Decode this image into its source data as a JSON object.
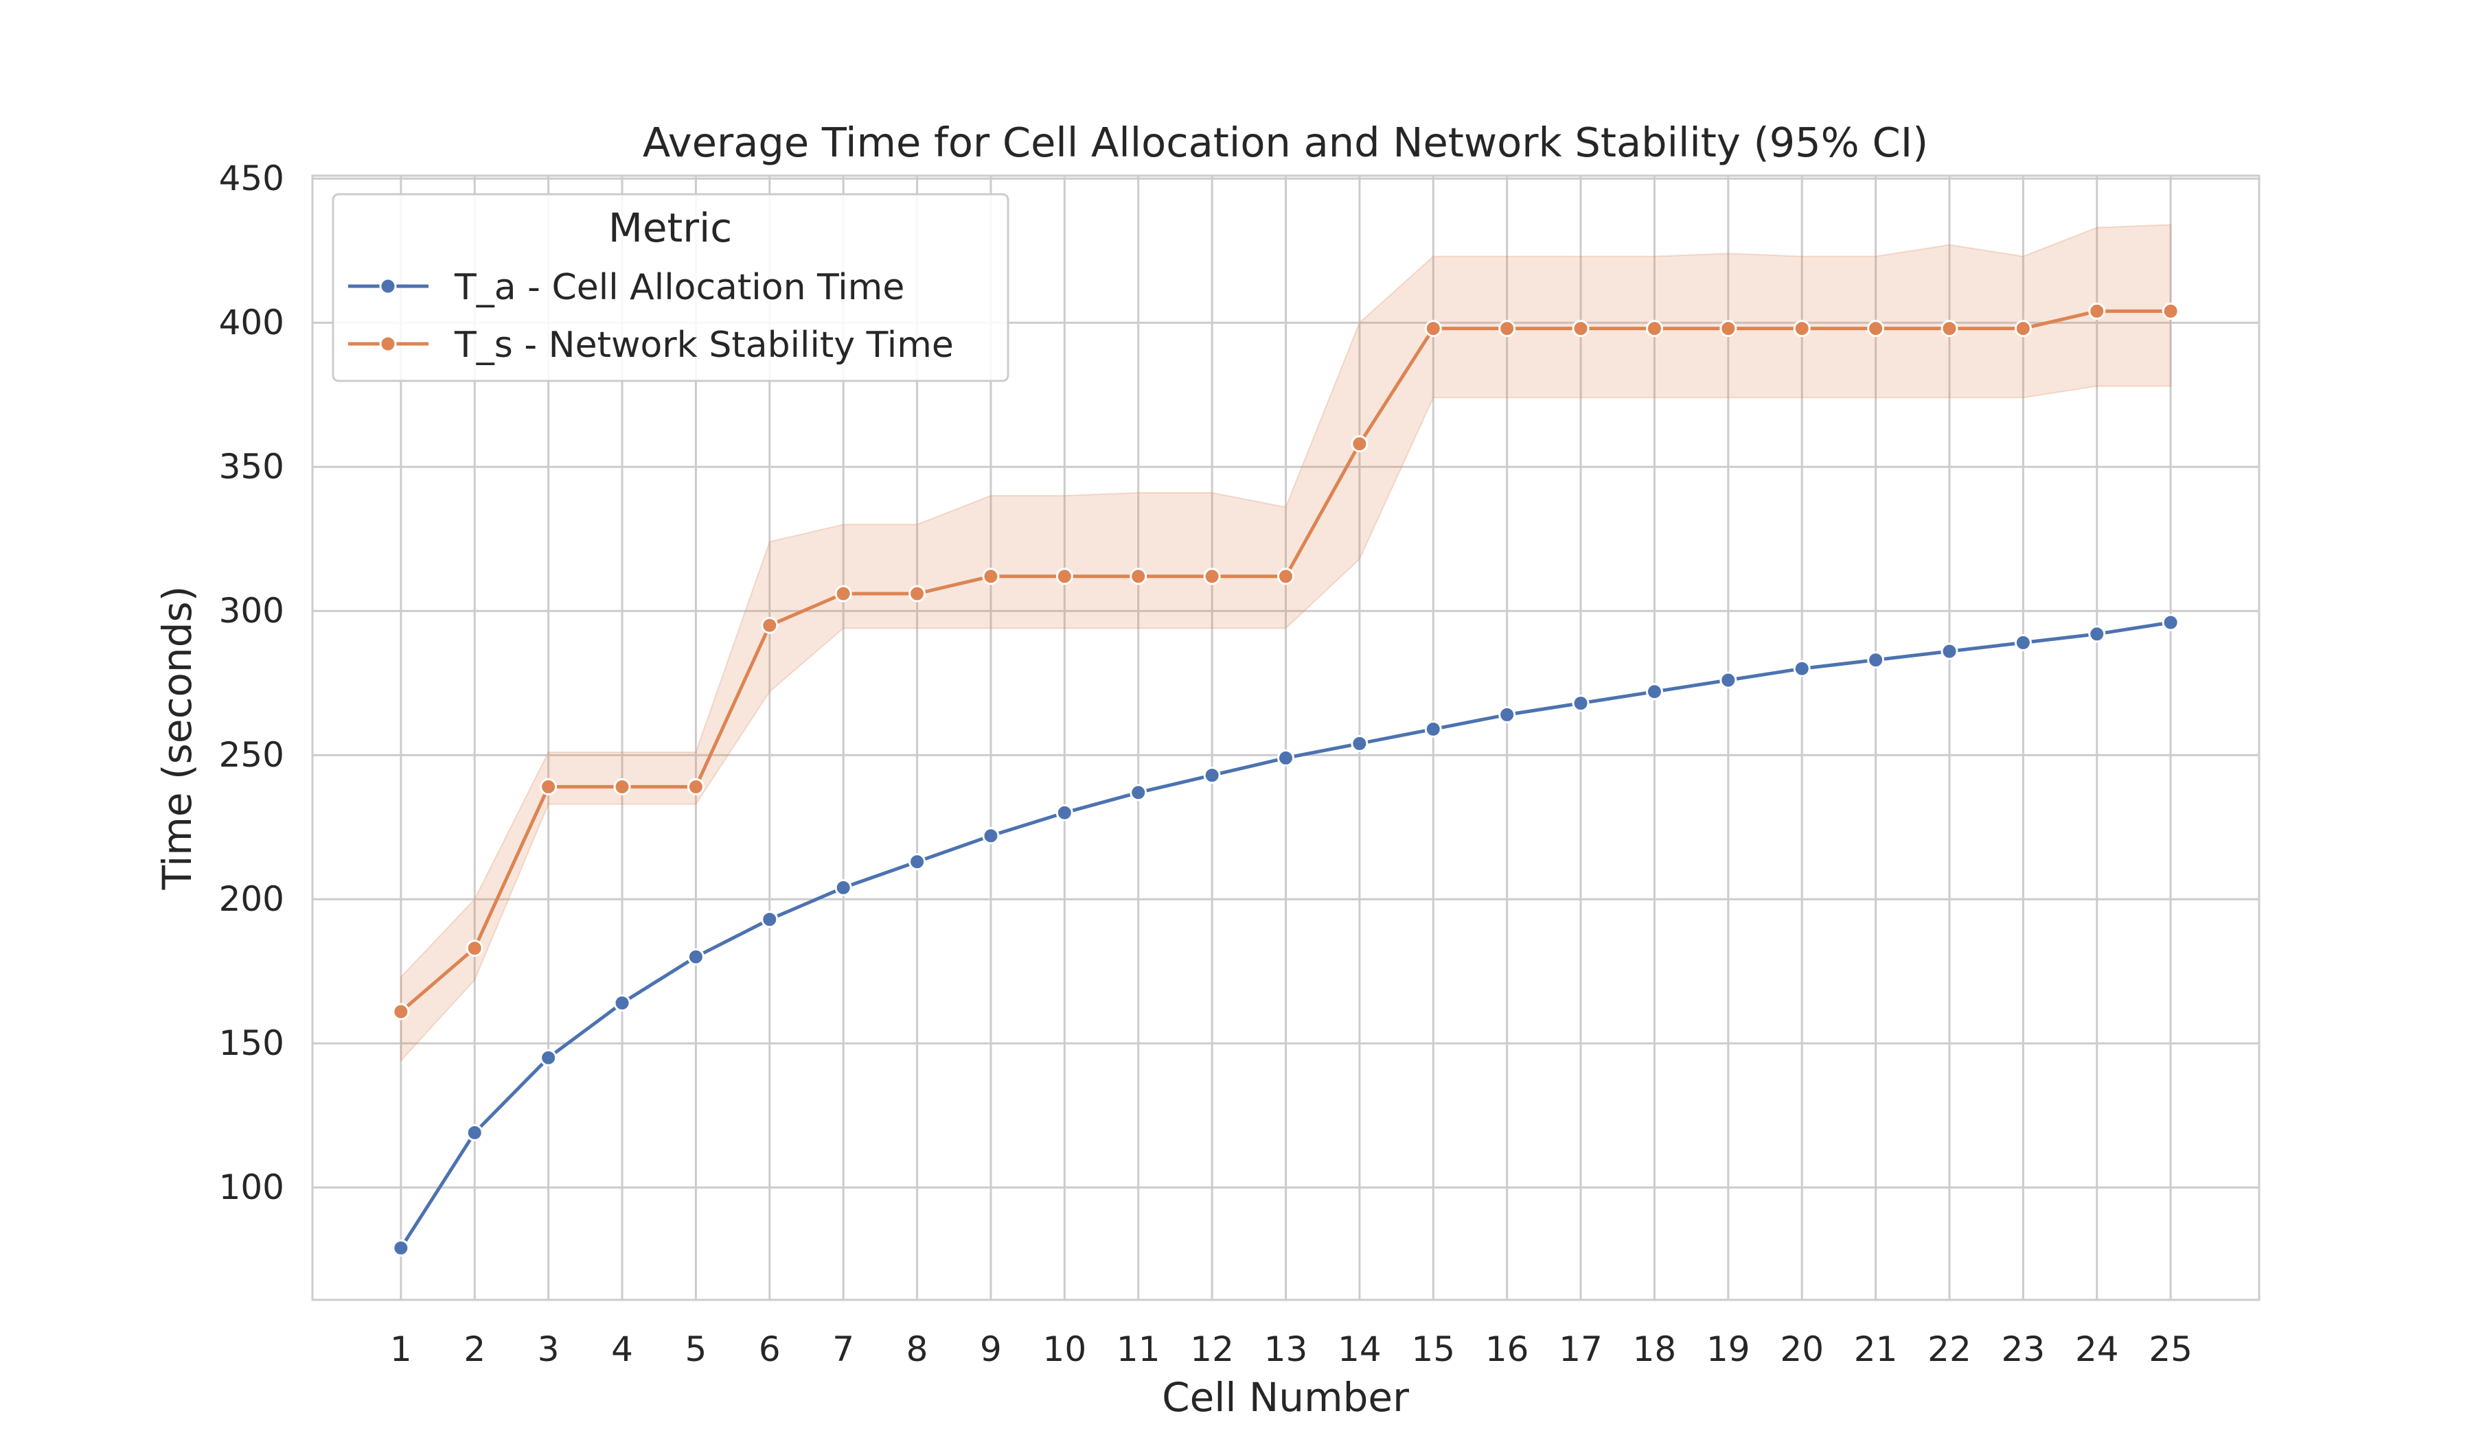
{
  "chart_data": {
    "type": "line",
    "title": "Average Time for Cell Allocation and Network Stability (95% CI)",
    "xlabel": "Cell Number",
    "ylabel": "Time (seconds)",
    "x": [
      1,
      2,
      3,
      4,
      5,
      6,
      7,
      8,
      9,
      10,
      11,
      12,
      13,
      14,
      15,
      16,
      17,
      18,
      19,
      20,
      21,
      22,
      23,
      24,
      25
    ],
    "xticks": [
      "1",
      "2",
      "3",
      "4",
      "5",
      "6",
      "7",
      "8",
      "9",
      "10",
      "11",
      "12",
      "13",
      "14",
      "15",
      "16",
      "17",
      "18",
      "19",
      "20",
      "21",
      "22",
      "23",
      "24",
      "25"
    ],
    "xlim": [
      -0.2,
      26.2
    ],
    "ylim": [
      61,
      451
    ],
    "yticks": [
      "100",
      "150",
      "200",
      "250",
      "300",
      "350",
      "400",
      "450"
    ],
    "ytick_values": [
      100,
      150,
      200,
      250,
      300,
      350,
      400,
      450
    ],
    "grid": true,
    "legend": {
      "title": "Metric",
      "placement": "top-left"
    },
    "series": [
      {
        "name": "T_a - Cell Allocation Time",
        "color": "#4c72b0",
        "values": [
          79,
          119,
          145,
          164,
          180,
          193,
          204,
          213,
          222,
          230,
          237,
          243,
          249,
          254,
          259,
          264,
          268,
          272,
          276,
          280,
          283,
          286,
          289,
          292,
          296
        ]
      },
      {
        "name": "T_s - Network Stability Time",
        "color": "#dd8452",
        "values": [
          161,
          183,
          239,
          239,
          239,
          295,
          306,
          306,
          312,
          312,
          312,
          312,
          312,
          358,
          398,
          398,
          398,
          398,
          398,
          398,
          398,
          398,
          398,
          404,
          404
        ],
        "ci_lower": [
          144,
          172,
          233,
          233,
          233,
          272,
          294,
          294,
          294,
          294,
          294,
          294,
          294,
          318,
          374,
          374,
          374,
          374,
          374,
          374,
          374,
          374,
          374,
          378,
          378
        ],
        "ci_upper": [
          173,
          200,
          251,
          251,
          251,
          324,
          330,
          330,
          340,
          340,
          341,
          341,
          336,
          400,
          423,
          423,
          423,
          423,
          424,
          423,
          423,
          427,
          423,
          433,
          434
        ]
      }
    ]
  }
}
